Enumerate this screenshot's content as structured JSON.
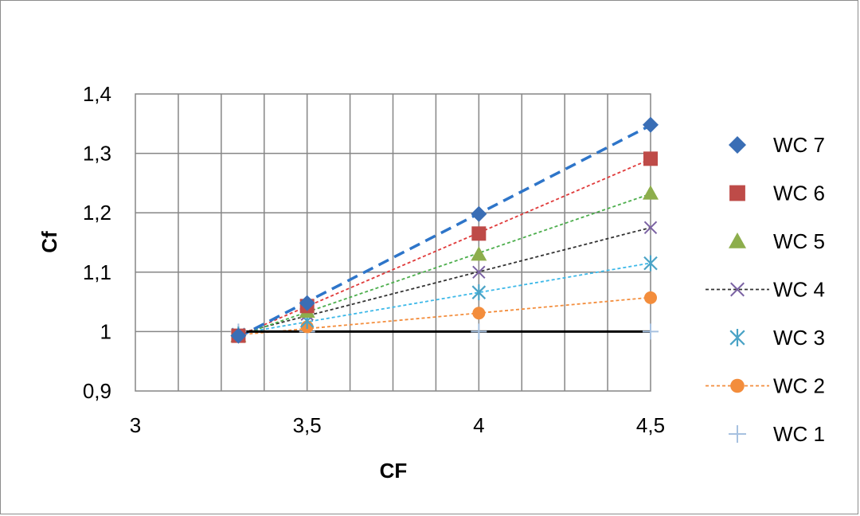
{
  "chart_data": {
    "type": "scatter",
    "title": "",
    "xlabel": "CF",
    "ylabel": "Cf",
    "xlim": [
      3,
      4.5
    ],
    "ylim": [
      0.9,
      1.4
    ],
    "x_ticks": [
      3,
      3.5,
      4,
      4.5
    ],
    "x_tick_labels": [
      "3",
      "3,5",
      "4",
      "4,5"
    ],
    "y_ticks": [
      0.9,
      1.0,
      1.1,
      1.2,
      1.3,
      1.4
    ],
    "y_tick_labels": [
      "0,9",
      "1",
      "1,1",
      "1,2",
      "1,3",
      "1,4"
    ],
    "x_minor_step": 0.125,
    "grid": true,
    "legend_position": "right",
    "reference_line": {
      "y": 1.0,
      "x": [
        3.3,
        4.5
      ],
      "color": "#000000"
    },
    "series": [
      {
        "name": "WC 7",
        "x": [
          3.3,
          3.5,
          4.0,
          4.5
        ],
        "y": [
          0.993,
          1.048,
          1.198,
          1.348
        ],
        "color": "#3a6eb5",
        "marker": "diamond",
        "trend": true,
        "trend_color": "#2e75c9",
        "trend_style": "dashed-thick"
      },
      {
        "name": "WC 6",
        "x": [
          3.3,
          3.5,
          4.0,
          4.5
        ],
        "y": [
          0.993,
          1.043,
          1.165,
          1.291
        ],
        "color": "#be4b48",
        "marker": "square",
        "trend": true,
        "trend_color": "#e03a3a",
        "trend_style": "dotted"
      },
      {
        "name": "WC 5",
        "x": [
          3.3,
          3.5,
          4.0,
          4.5
        ],
        "y": [
          0.993,
          1.034,
          1.13,
          1.233
        ],
        "color": "#8dae4c",
        "marker": "triangle",
        "trend": true,
        "trend_color": "#4cae4c",
        "trend_style": "dotted"
      },
      {
        "name": "WC 4",
        "x": [
          3.3,
          3.5,
          4.0,
          4.5
        ],
        "y": [
          0.995,
          1.029,
          1.1,
          1.175
        ],
        "color": "#7b62a3",
        "marker": "x",
        "trend": true,
        "trend_color": "#333333",
        "trend_style": "dotted"
      },
      {
        "name": "WC 3",
        "x": [
          3.3,
          3.5,
          4.0,
          4.5
        ],
        "y": [
          0.995,
          1.018,
          1.066,
          1.115
        ],
        "color": "#4aa3c6",
        "marker": "star",
        "trend": true,
        "trend_color": "#3cb8e8",
        "trend_style": "dotted"
      },
      {
        "name": "WC 2",
        "x": [
          3.3,
          3.5,
          4.0,
          4.5
        ],
        "y": [
          0.992,
          1.008,
          1.031,
          1.057
        ],
        "color": "#f38d3c",
        "marker": "circle",
        "trend": true,
        "trend_color": "#f38d3c",
        "trend_style": "dotted"
      },
      {
        "name": "WC 1",
        "x": [
          3.3,
          3.5,
          4.0,
          4.5
        ],
        "y": [
          1.0,
          1.0,
          1.0,
          1.0
        ],
        "color": "#a7c1e0",
        "marker": "plus",
        "trend": false
      }
    ]
  }
}
